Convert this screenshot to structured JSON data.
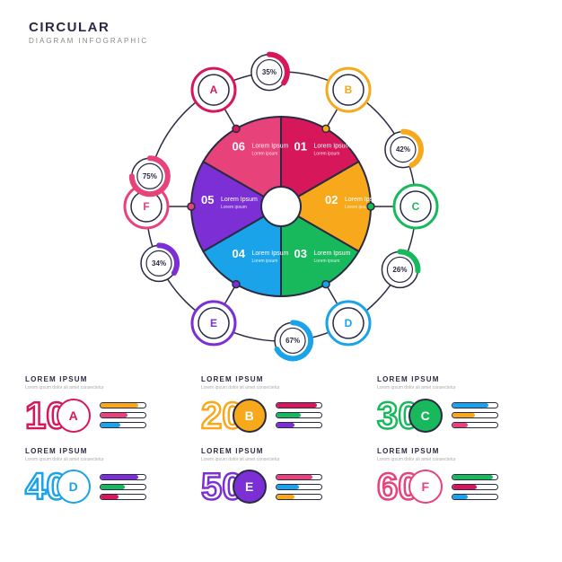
{
  "header": {
    "title": "CIRCULAR",
    "subtitle": "DIAGRAM INFOGRAPHIC"
  },
  "diagram": {
    "type": "circular",
    "center": {
      "fill": "#ffffff",
      "stroke": "#2a2a44"
    },
    "orbit_stroke": "#2a2a44",
    "segments": [
      {
        "num": "01",
        "label": "Lorem Ipsum",
        "sub": "Lorem ipsum",
        "color": "#d6185b",
        "letter": "A",
        "angle": -60
      },
      {
        "num": "02",
        "label": "Lorem Ipsum",
        "sub": "Lorem ipsum",
        "color": "#f7a81b",
        "letter": "B",
        "angle": 0
      },
      {
        "num": "03",
        "label": "Lorem Ipsum",
        "sub": "Lorem ipsum",
        "color": "#18b85c",
        "letter": "C",
        "angle": 60
      },
      {
        "num": "04",
        "label": "Lorem Ipsum",
        "sub": "Lorem ipsum",
        "color": "#1aa3e8",
        "letter": "D",
        "angle": 120
      },
      {
        "num": "05",
        "label": "Lorem Ipsum",
        "sub": "Lorem ipsum",
        "color": "#7b2fd4",
        "letter": "E",
        "angle": 180
      },
      {
        "num": "06",
        "label": "Lorem Ipsum",
        "sub": "Lorem ipsum",
        "color": "#e8427a",
        "letter": "F",
        "angle": 240
      }
    ],
    "percents": [
      {
        "value": "75%",
        "angle": -107,
        "color": "#e8427a",
        "pct": 0.75
      },
      {
        "value": "35%",
        "angle": -35,
        "color": "#d6185b",
        "pct": 0.35
      },
      {
        "value": "42%",
        "angle": 35,
        "color": "#f7a81b",
        "pct": 0.42
      },
      {
        "value": "26%",
        "angle": 88,
        "color": "#18b85c",
        "pct": 0.26
      },
      {
        "value": "67%",
        "angle": 145,
        "color": "#1aa3e8",
        "pct": 0.67
      },
      {
        "value": "34%",
        "angle": 215,
        "color": "#7b2fd4",
        "pct": 0.34
      }
    ],
    "radii": {
      "inner": 22,
      "segment": 100,
      "orbit": 150,
      "node": 24,
      "percent_node": 20
    }
  },
  "cards": [
    {
      "num": "10",
      "letter": "A",
      "title": "LOREM IPSUM",
      "sub": "Lorem ipsum dolor sit amet consectetur",
      "color": "#d6185b",
      "filled": false,
      "bars": [
        {
          "c": "#f7a81b",
          "w": 0.85
        },
        {
          "c": "#e8427a",
          "w": 0.6
        },
        {
          "c": "#1aa3e8",
          "w": 0.45
        }
      ]
    },
    {
      "num": "20",
      "letter": "B",
      "title": "LOREM IPSUM",
      "sub": "Lorem ipsum dolor sit amet consectetur",
      "color": "#f7a81b",
      "filled": true,
      "bars": [
        {
          "c": "#d6185b",
          "w": 0.9
        },
        {
          "c": "#18b85c",
          "w": 0.55
        },
        {
          "c": "#7b2fd4",
          "w": 0.4
        }
      ]
    },
    {
      "num": "30",
      "letter": "C",
      "title": "LOREM IPSUM",
      "sub": "Lorem ipsum dolor sit amet consectetur",
      "color": "#18b85c",
      "filled": true,
      "bars": [
        {
          "c": "#1aa3e8",
          "w": 0.8
        },
        {
          "c": "#f7a81b",
          "w": 0.5
        },
        {
          "c": "#e8427a",
          "w": 0.35
        }
      ]
    },
    {
      "num": "40",
      "letter": "D",
      "title": "LOREM IPSUM",
      "sub": "Lorem ipsum dolor sit amet consectetur",
      "color": "#1aa3e8",
      "filled": false,
      "bars": [
        {
          "c": "#7b2fd4",
          "w": 0.85
        },
        {
          "c": "#18b85c",
          "w": 0.55
        },
        {
          "c": "#d6185b",
          "w": 0.4
        }
      ]
    },
    {
      "num": "50",
      "letter": "E",
      "title": "LOREM IPSUM",
      "sub": "Lorem ipsum dolor sit amet consectetur",
      "color": "#7b2fd4",
      "filled": true,
      "bars": [
        {
          "c": "#e8427a",
          "w": 0.8
        },
        {
          "c": "#1aa3e8",
          "w": 0.5
        },
        {
          "c": "#f7a81b",
          "w": 0.4
        }
      ]
    },
    {
      "num": "60",
      "letter": "F",
      "title": "LOREM IPSUM",
      "sub": "Lorem ipsum dolor sit amet consectetur",
      "color": "#e8427a",
      "filled": false,
      "bars": [
        {
          "c": "#18b85c",
          "w": 0.9
        },
        {
          "c": "#d6185b",
          "w": 0.55
        },
        {
          "c": "#1aa3e8",
          "w": 0.35
        }
      ]
    }
  ]
}
